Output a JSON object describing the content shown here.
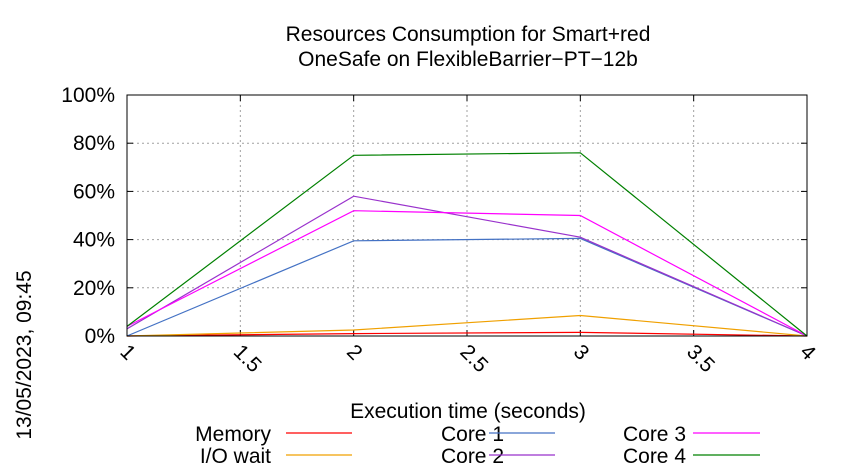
{
  "chart_data": {
    "type": "line",
    "title": "Resources Consumption for Smart+red",
    "subtitle": "OneSafe on FlexibleBarrier−PT−12b",
    "xlabel": "Execution time (seconds)",
    "ylabel": "",
    "side_label": "13/05/2023, 09:45",
    "xlim": [
      1,
      4
    ],
    "ylim": [
      0,
      100
    ],
    "x_ticks": [
      1,
      1.5,
      2,
      2.5,
      3,
      3.5,
      4
    ],
    "x_tick_labels": [
      "1",
      "1.5",
      "2",
      "2.5",
      "3",
      "3.5",
      "4"
    ],
    "y_ticks": [
      0,
      20,
      40,
      60,
      80,
      100
    ],
    "y_tick_labels": [
      "0%",
      "20%",
      "40%",
      "60%",
      "80%",
      "100%"
    ],
    "grid": true,
    "legend_position": "bottom",
    "x": [
      1,
      2,
      3,
      4
    ],
    "series": [
      {
        "name": "Memory",
        "color": "#ff0000",
        "values": [
          0,
          1,
          1.5,
          0
        ]
      },
      {
        "name": "I/O wait",
        "color": "#f0a000",
        "values": [
          0,
          2.5,
          8.5,
          0
        ]
      },
      {
        "name": "Core 1",
        "color": "#4472c4",
        "values": [
          0,
          39.5,
          40.5,
          0
        ]
      },
      {
        "name": "Core 2",
        "color": "#9932cc",
        "values": [
          3,
          58,
          41,
          0
        ]
      },
      {
        "name": "Core 3",
        "color": "#ff00ff",
        "values": [
          4,
          52,
          50,
          0
        ]
      },
      {
        "name": "Core 4",
        "color": "#008000",
        "values": [
          4,
          75,
          76,
          0
        ]
      }
    ]
  }
}
